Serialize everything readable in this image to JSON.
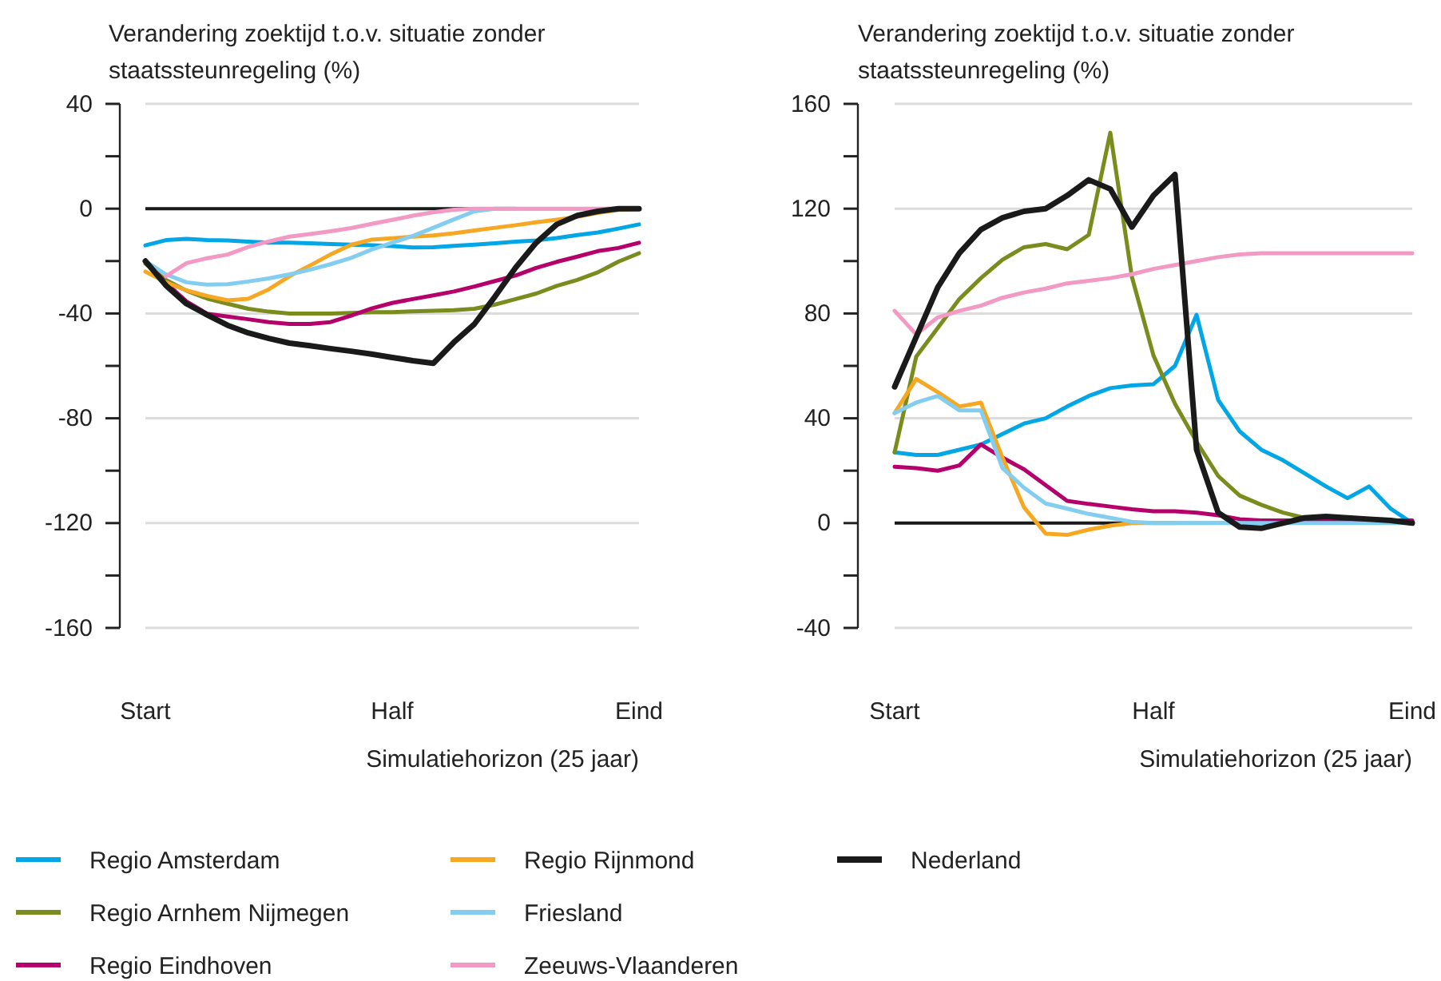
{
  "chart_data": [
    {
      "type": "line",
      "ylabel": "Verandering zoektijd t.o.v. situatie zonder staatssteunregeling (%)",
      "xlabel": "Simulatiehorizon (25 jaar)",
      "categories": [
        "Start",
        null,
        null,
        null,
        null,
        null,
        null,
        null,
        null,
        null,
        null,
        null,
        "Half",
        null,
        null,
        null,
        null,
        null,
        null,
        null,
        null,
        null,
        null,
        null,
        "Eind"
      ],
      "ylim": [
        -160,
        40
      ],
      "yticks": [
        -160,
        -120,
        -80,
        -40,
        0,
        40
      ],
      "grid": "y",
      "legend": "bottom",
      "marker": "none",
      "line_style": "solid",
      "ref_lines": [
        {
          "axis": "y",
          "value": 0,
          "color": "#1a1a1a"
        }
      ],
      "series": [
        {
          "name": "Regio Amsterdam",
          "color": "#00a6e6",
          "values": [
            -14,
            -12,
            -11.5,
            -12,
            -12.1,
            -12.6,
            -13,
            -13,
            -13.2,
            -13.5,
            -13.7,
            -14,
            -14.3,
            -14.8,
            -14.7,
            -14.2,
            -13.7,
            -13.2,
            -12.6,
            -12.1,
            -11.2,
            -10.1,
            -9.1,
            -7.6,
            -6
          ]
        },
        {
          "name": "Regio Arnhem Nijmegen",
          "color": "#7a8c1e",
          "values": [
            -21,
            -27.2,
            -31.3,
            -34.3,
            -36.3,
            -38.2,
            -39.3,
            -40,
            -40,
            -40,
            -39.8,
            -39.5,
            -39.5,
            -39.2,
            -39,
            -38.7,
            -38.2,
            -36.6,
            -34.5,
            -32.4,
            -29.5,
            -27.2,
            -24.3,
            -20.2,
            -17
          ]
        },
        {
          "name": "Regio Eindhoven",
          "color": "#b5006b",
          "values": [
            -20,
            -28.3,
            -35.4,
            -40.1,
            -41.2,
            -42.2,
            -43.3,
            -44,
            -44,
            -43.3,
            -40.8,
            -38.1,
            -36,
            -34.5,
            -33.1,
            -31.6,
            -29.7,
            -27.6,
            -25.5,
            -22.6,
            -20.3,
            -18.3,
            -16.2,
            -15,
            -13
          ]
        },
        {
          "name": "Regio Rijnmond",
          "color": "#f7a823",
          "values": [
            -24,
            -28.1,
            -31.2,
            -33.3,
            -35,
            -34.4,
            -30.8,
            -25.8,
            -21.7,
            -17.5,
            -13.8,
            -11.8,
            -11.3,
            -10.7,
            -10.2,
            -9.4,
            -8.3,
            -7.3,
            -6.3,
            -5.2,
            -4.2,
            -3.1,
            -1.6,
            -0.5,
            0
          ]
        },
        {
          "name": "Friesland",
          "color": "#82cdf0",
          "values": [
            -20,
            -25.1,
            -28.1,
            -29,
            -28.8,
            -27.8,
            -26.6,
            -25.1,
            -23.3,
            -21.2,
            -18.8,
            -15.6,
            -13,
            -10.4,
            -7.3,
            -4.1,
            -1,
            0,
            0,
            null,
            null,
            null,
            null,
            null,
            null
          ]
        },
        {
          "name": "Zeeuws-Vlaanderen",
          "color": "#f29ac4",
          "values": [
            null,
            -25.8,
            -20.8,
            -18.9,
            -17.5,
            -14.6,
            -12.5,
            -10.7,
            -9.7,
            -8.6,
            -7.4,
            -5.8,
            -4.3,
            -2.7,
            -1.4,
            -0.4,
            0,
            0,
            0,
            0,
            0,
            0,
            0,
            0,
            0
          ]
        },
        {
          "name": "Nederland",
          "color": "#1a1a1a",
          "values": [
            -20,
            -29.3,
            -36.3,
            -40.5,
            -44.5,
            -47.4,
            -49.5,
            -51.3,
            -52.3,
            -53.4,
            -54.4,
            -55.5,
            -56.8,
            -58,
            -59,
            -51,
            -44,
            -33.5,
            -22.5,
            -13,
            -6,
            -2.6,
            -1,
            0,
            0
          ]
        }
      ]
    },
    {
      "type": "line",
      "ylabel": "Verandering zoektijd t.o.v. situatie zonder staatssteunregeling (%)",
      "xlabel": "Simulatiehorizon (25 jaar)",
      "categories": [
        "Start",
        null,
        null,
        null,
        null,
        null,
        null,
        null,
        null,
        null,
        null,
        null,
        "Half",
        null,
        null,
        null,
        null,
        null,
        null,
        null,
        null,
        null,
        null,
        null,
        "Eind"
      ],
      "ylim": [
        -40,
        160
      ],
      "yticks": [
        -40,
        0,
        40,
        80,
        120,
        160
      ],
      "grid": "y",
      "marker": "none",
      "line_style": "solid",
      "ref_lines": [
        {
          "axis": "y",
          "value": 0,
          "color": "#1a1a1a"
        }
      ],
      "series": [
        {
          "name": "Regio Amsterdam",
          "color": "#00a6e6",
          "values": [
            27,
            26,
            26,
            28,
            30,
            34,
            38,
            40,
            44.5,
            48.5,
            51.5,
            52.5,
            53,
            60,
            79.5,
            47,
            35,
            28,
            24,
            19,
            14,
            9.5,
            14,
            5.5,
            0
          ]
        },
        {
          "name": "Regio Arnhem Nijmegen",
          "color": "#7a8c1e",
          "values": [
            27,
            63.5,
            74.5,
            85.5,
            93.5,
            100.5,
            105.3,
            106.5,
            104.5,
            110,
            149,
            94,
            64,
            45.5,
            31,
            18,
            10.5,
            7,
            4,
            2,
            1,
            null,
            null,
            null,
            null
          ]
        },
        {
          "name": "Regio Eindhoven",
          "color": "#b5006b",
          "values": [
            21.5,
            21,
            20,
            22,
            30,
            25,
            20.5,
            14.5,
            8.5,
            7.3,
            6.3,
            5.3,
            4.5,
            4.5,
            4,
            3,
            1.5,
            1,
            1,
            1,
            1,
            1,
            1,
            1,
            1
          ]
        },
        {
          "name": "Regio Rijnmond",
          "color": "#f7a823",
          "values": [
            42,
            55,
            50,
            44.5,
            46,
            25,
            6,
            -4,
            -4.5,
            -2.5,
            -1,
            0,
            0,
            0,
            null,
            null,
            null,
            null,
            null,
            null,
            null,
            null,
            null,
            null,
            null
          ]
        },
        {
          "name": "Friesland",
          "color": "#82cdf0",
          "values": [
            42,
            46,
            48.5,
            43,
            43,
            21,
            13.5,
            7.5,
            5.5,
            3.5,
            2,
            0.5,
            0,
            0,
            0,
            0,
            0,
            0,
            0,
            0,
            0,
            0,
            0,
            0,
            0
          ]
        },
        {
          "name": "Zeeuws-Vlaanderen",
          "color": "#f29ac4",
          "values": [
            81,
            72,
            78.5,
            81,
            83,
            86,
            88,
            89.5,
            91.5,
            92.5,
            93.5,
            95,
            97,
            98.5,
            100,
            101.5,
            102.5,
            103,
            103,
            103,
            103,
            103,
            103,
            103,
            103
          ]
        },
        {
          "name": "Nederland",
          "color": "#1a1a1a",
          "values": [
            52,
            71,
            90,
            103,
            112,
            116.5,
            119,
            120,
            125,
            131,
            127.5,
            113,
            125,
            133,
            28,
            4,
            -1.5,
            -2,
            0,
            2,
            2.5,
            2,
            1.5,
            1,
            0
          ]
        }
      ]
    }
  ]
}
